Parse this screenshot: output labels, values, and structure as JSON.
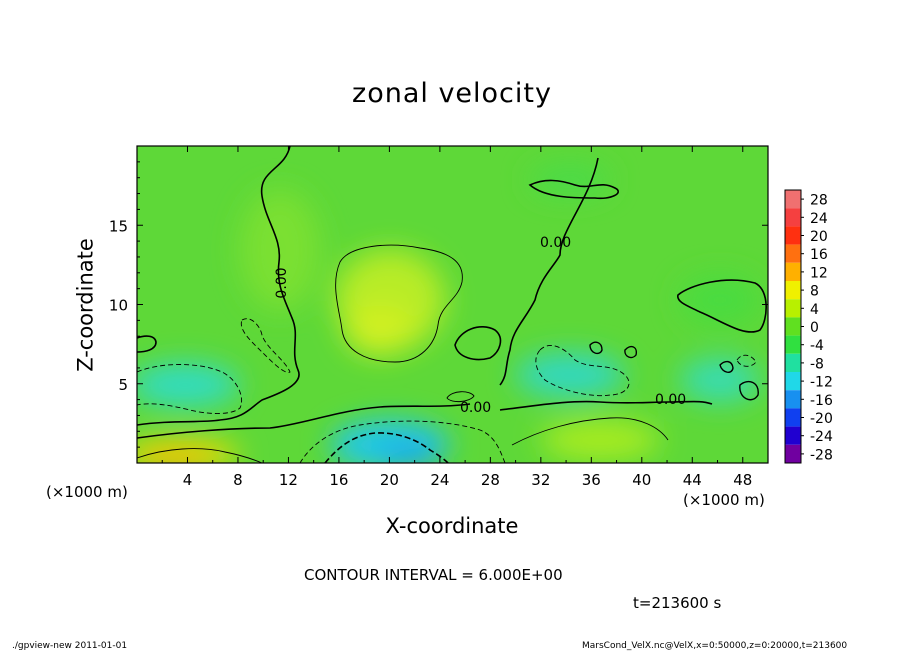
{
  "chart_data": {
    "type": "heatmap",
    "title": "zonal velocity",
    "xlabel": "X-coordinate",
    "ylabel": "Z-coordinate",
    "x_unit_label": "(×1000 m)",
    "xlim": [
      0,
      50
    ],
    "ylim": [
      0,
      20
    ],
    "x_ticks": [
      4,
      8,
      12,
      16,
      20,
      24,
      28,
      32,
      36,
      40,
      44,
      48
    ],
    "y_ticks": [
      5,
      10,
      15
    ],
    "colorbar": {
      "labels": [
        28,
        24,
        20,
        16,
        12,
        8,
        4,
        0,
        -4,
        -8,
        -12,
        -16,
        -20,
        -24,
        -28
      ],
      "colors": [
        "#f07070",
        "#f54040",
        "#ff3010",
        "#ff7010",
        "#ffb000",
        "#f0f000",
        "#b8f000",
        "#60e020",
        "#30e040",
        "#20e0a0",
        "#20d8e8",
        "#1890f0",
        "#1040f0",
        "#2000d0",
        "#7000a0"
      ]
    },
    "contour_labels": [
      "0.00",
      "0.00",
      "0.00",
      "0.00"
    ],
    "contour_interval": "CONTOUR INTERVAL = 6.000E+00",
    "time": "t=213600 s"
  },
  "footer": {
    "left": "./gpview-new   2011-01-01",
    "right": "MarsCond_VelX.nc@VelX,x=0:50000,z=0:20000,t=213600"
  },
  "colors": {
    "background": "#ffffff",
    "field_base": "#66dd33"
  }
}
